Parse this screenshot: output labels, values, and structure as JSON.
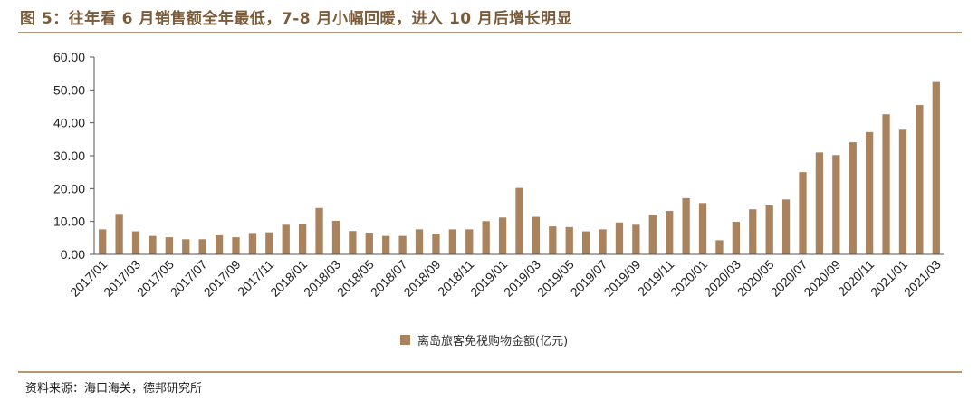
{
  "header": {
    "title": "图 5：往年看 6 月销售额全年最低，7-8 月小幅回暖，进入 10 月后增长明显"
  },
  "footer": {
    "source": "资料来源：海口海关，德邦研究所"
  },
  "colors": {
    "bar": "#a8835d",
    "accent": "#7a5b3a",
    "rule": "#b89670"
  },
  "chart_data": {
    "type": "bar",
    "categories": [
      "2017/01",
      "2017/02",
      "2017/03",
      "2017/04",
      "2017/05",
      "2017/06",
      "2017/07",
      "2017/08",
      "2017/09",
      "2017/10",
      "2017/11",
      "2017/12",
      "2018/01",
      "2018/02",
      "2018/03",
      "2018/04",
      "2018/05",
      "2018/06",
      "2018/07",
      "2018/08",
      "2018/09",
      "2018/10",
      "2018/11",
      "2018/12",
      "2019/01",
      "2019/02",
      "2019/03",
      "2019/04",
      "2019/05",
      "2019/06",
      "2019/07",
      "2019/08",
      "2019/09",
      "2019/10",
      "2019/11",
      "2019/12",
      "2020/01",
      "2020/02",
      "2020/03",
      "2020/04",
      "2020/05",
      "2020/06",
      "2020/07",
      "2020/08",
      "2020/09",
      "2020/10",
      "2020/11",
      "2020/12",
      "2021/01",
      "2021/02",
      "2021/03"
    ],
    "x_tick_labels": [
      "2017/01",
      "2017/03",
      "2017/05",
      "2017/07",
      "2017/09",
      "2017/11",
      "2018/01",
      "2018/03",
      "2018/05",
      "2018/07",
      "2018/09",
      "2018/11",
      "2019/01",
      "2019/03",
      "2019/05",
      "2019/07",
      "2019/09",
      "2019/11",
      "2020/01",
      "2020/03",
      "2020/05",
      "2020/07",
      "2020/09",
      "2020/11",
      "2021/01",
      "2021/03"
    ],
    "series": [
      {
        "name": "离岛旅客免税购物金额(亿元)",
        "values": [
          7.6,
          12.3,
          7.0,
          5.6,
          5.2,
          4.6,
          4.6,
          5.8,
          5.2,
          6.5,
          6.7,
          9.0,
          9.1,
          14.1,
          10.2,
          7.1,
          6.6,
          5.6,
          5.6,
          7.6,
          6.3,
          7.6,
          7.6,
          10.1,
          11.2,
          20.2,
          11.4,
          8.5,
          8.3,
          7.0,
          7.6,
          9.7,
          9.0,
          12.0,
          13.2,
          17.1,
          15.6,
          4.3,
          9.9,
          13.7,
          14.9,
          16.7,
          25.0,
          31.0,
          30.2,
          34.1,
          37.2,
          42.6,
          37.9,
          45.4,
          52.4
        ]
      }
    ],
    "y_ticks": [
      "0.00",
      "10.00",
      "20.00",
      "30.00",
      "40.00",
      "50.00",
      "60.00"
    ],
    "ylim": [
      0,
      60
    ],
    "grid": false,
    "legend_position": "bottom-center"
  }
}
